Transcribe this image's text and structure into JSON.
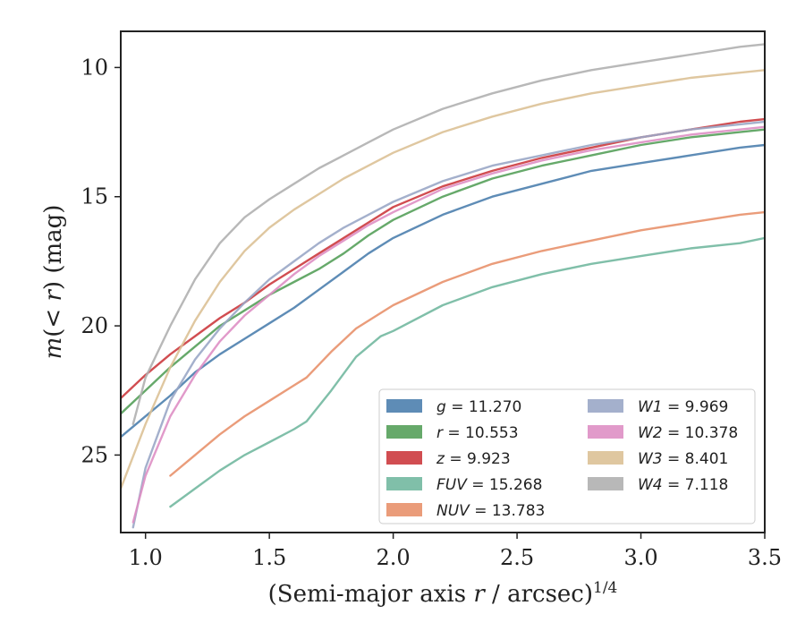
{
  "chart_data": {
    "type": "line",
    "xlabel": "(Semi-major axis r / arcsec)^1/4",
    "ylabel": "m(< r) (mag)",
    "xlim": [
      0.9,
      3.5
    ],
    "ylim": [
      28.0,
      8.6
    ],
    "y_inverted": true,
    "x_ticks": [
      1.0,
      1.5,
      2.0,
      2.5,
      3.0,
      3.5
    ],
    "x_tick_labels": [
      "1.0",
      "1.5",
      "2.0",
      "2.5",
      "3.0",
      "3.5"
    ],
    "y_ticks": [
      10,
      15,
      20,
      25
    ],
    "y_tick_labels": [
      "10",
      "15",
      "20",
      "25"
    ],
    "grid": false,
    "legend_position": "lower-right",
    "legend_columns": 2,
    "series": [
      {
        "name": "g = 11.270",
        "legend_label": "g = 11.270",
        "color": "#4c7fae",
        "x": [
          0.9,
          1.0,
          1.1,
          1.2,
          1.3,
          1.4,
          1.5,
          1.6,
          1.7,
          1.8,
          1.9,
          2.0,
          2.2,
          2.4,
          2.6,
          2.8,
          3.0,
          3.2,
          3.4,
          3.5
        ],
        "y": [
          24.3,
          23.5,
          22.7,
          21.8,
          21.1,
          20.5,
          19.9,
          19.3,
          18.6,
          17.9,
          17.2,
          16.6,
          15.7,
          15.0,
          14.5,
          14.0,
          13.7,
          13.4,
          13.1,
          13.0
        ]
      },
      {
        "name": "r = 10.553",
        "legend_label": "r = 10.553",
        "color": "#55a05a",
        "x": [
          0.9,
          1.0,
          1.1,
          1.2,
          1.3,
          1.4,
          1.5,
          1.6,
          1.7,
          1.8,
          1.9,
          2.0,
          2.2,
          2.4,
          2.6,
          2.8,
          3.0,
          3.2,
          3.4,
          3.5
        ],
        "y": [
          23.4,
          22.5,
          21.6,
          20.8,
          20.0,
          19.4,
          18.8,
          18.3,
          17.8,
          17.2,
          16.5,
          15.9,
          15.0,
          14.3,
          13.8,
          13.4,
          13.0,
          12.7,
          12.5,
          12.4
        ]
      },
      {
        "name": "z = 9.923",
        "legend_label": "z = 9.923",
        "color": "#cc3a3e",
        "x": [
          0.9,
          1.0,
          1.1,
          1.2,
          1.3,
          1.4,
          1.5,
          1.6,
          1.7,
          1.8,
          1.9,
          2.0,
          2.2,
          2.4,
          2.6,
          2.8,
          3.0,
          3.2,
          3.4,
          3.5
        ],
        "y": [
          22.8,
          21.9,
          21.1,
          20.4,
          19.7,
          19.1,
          18.4,
          17.8,
          17.2,
          16.6,
          16.0,
          15.4,
          14.6,
          14.0,
          13.5,
          13.1,
          12.7,
          12.4,
          12.1,
          12.0
        ]
      },
      {
        "name": "FUV = 15.268",
        "legend_label": "FUV = 15.268",
        "color": "#72b8a0",
        "x": [
          1.1,
          1.2,
          1.3,
          1.4,
          1.5,
          1.6,
          1.65,
          1.75,
          1.85,
          1.95,
          2.0,
          2.2,
          2.4,
          2.6,
          2.8,
          3.0,
          3.2,
          3.4,
          3.5
        ],
        "y": [
          27.0,
          26.3,
          25.6,
          25.0,
          24.5,
          24.0,
          23.7,
          22.5,
          21.2,
          20.4,
          20.2,
          19.2,
          18.5,
          18.0,
          17.6,
          17.3,
          17.0,
          16.8,
          16.6
        ]
      },
      {
        "name": "NUV = 13.783",
        "legend_label": "NUV = 13.783",
        "color": "#e8916c",
        "x": [
          1.1,
          1.2,
          1.3,
          1.4,
          1.5,
          1.6,
          1.65,
          1.75,
          1.85,
          1.95,
          2.0,
          2.2,
          2.4,
          2.6,
          2.8,
          3.0,
          3.2,
          3.4,
          3.5
        ],
        "y": [
          25.8,
          25.0,
          24.2,
          23.5,
          22.9,
          22.3,
          22.0,
          21.0,
          20.1,
          19.5,
          19.2,
          18.3,
          17.6,
          17.1,
          16.7,
          16.3,
          16.0,
          15.7,
          15.6
        ]
      },
      {
        "name": "W1 = 9.969",
        "legend_label": "W1 = 9.969",
        "color": "#9aa7c7",
        "x": [
          0.95,
          1.0,
          1.1,
          1.2,
          1.3,
          1.4,
          1.5,
          1.6,
          1.7,
          1.8,
          1.9,
          2.0,
          2.2,
          2.4,
          2.6,
          2.8,
          3.0,
          3.2,
          3.4,
          3.5
        ],
        "y": [
          27.8,
          25.5,
          22.9,
          21.3,
          20.1,
          19.1,
          18.2,
          17.5,
          16.8,
          16.2,
          15.7,
          15.2,
          14.4,
          13.8,
          13.4,
          13.0,
          12.7,
          12.4,
          12.2,
          12.1
        ]
      },
      {
        "name": "W2 = 10.378",
        "legend_label": "W2 = 10.378",
        "color": "#de8fc4",
        "x": [
          0.95,
          1.0,
          1.1,
          1.2,
          1.3,
          1.4,
          1.5,
          1.6,
          1.7,
          1.8,
          1.9,
          2.0,
          2.2,
          2.4,
          2.6,
          2.8,
          3.0,
          3.2,
          3.4,
          3.5
        ],
        "y": [
          27.6,
          25.8,
          23.5,
          21.9,
          20.6,
          19.6,
          18.8,
          18.0,
          17.3,
          16.7,
          16.1,
          15.6,
          14.7,
          14.1,
          13.6,
          13.2,
          12.9,
          12.6,
          12.4,
          12.3
        ]
      },
      {
        "name": "W3 = 8.401",
        "legend_label": "W3 = 8.401",
        "color": "#dcc196",
        "x": [
          0.9,
          1.0,
          1.1,
          1.2,
          1.3,
          1.4,
          1.5,
          1.6,
          1.7,
          1.8,
          1.9,
          2.0,
          2.2,
          2.4,
          2.6,
          2.8,
          3.0,
          3.2,
          3.4,
          3.5
        ],
        "y": [
          26.3,
          23.8,
          21.6,
          19.8,
          18.3,
          17.1,
          16.2,
          15.5,
          14.9,
          14.3,
          13.8,
          13.3,
          12.5,
          11.9,
          11.4,
          11.0,
          10.7,
          10.4,
          10.2,
          10.1
        ]
      },
      {
        "name": "W4 = 7.118",
        "legend_label": "W4 = 7.118",
        "color": "#b0b0b0",
        "x": [
          0.95,
          1.0,
          1.1,
          1.2,
          1.3,
          1.4,
          1.5,
          1.6,
          1.7,
          1.8,
          1.9,
          2.0,
          2.2,
          2.4,
          2.6,
          2.8,
          3.0,
          3.2,
          3.4,
          3.5
        ],
        "y": [
          23.8,
          22.0,
          20.0,
          18.2,
          16.8,
          15.8,
          15.1,
          14.5,
          13.9,
          13.4,
          12.9,
          12.4,
          11.6,
          11.0,
          10.5,
          10.1,
          9.8,
          9.5,
          9.2,
          9.1
        ]
      }
    ]
  }
}
